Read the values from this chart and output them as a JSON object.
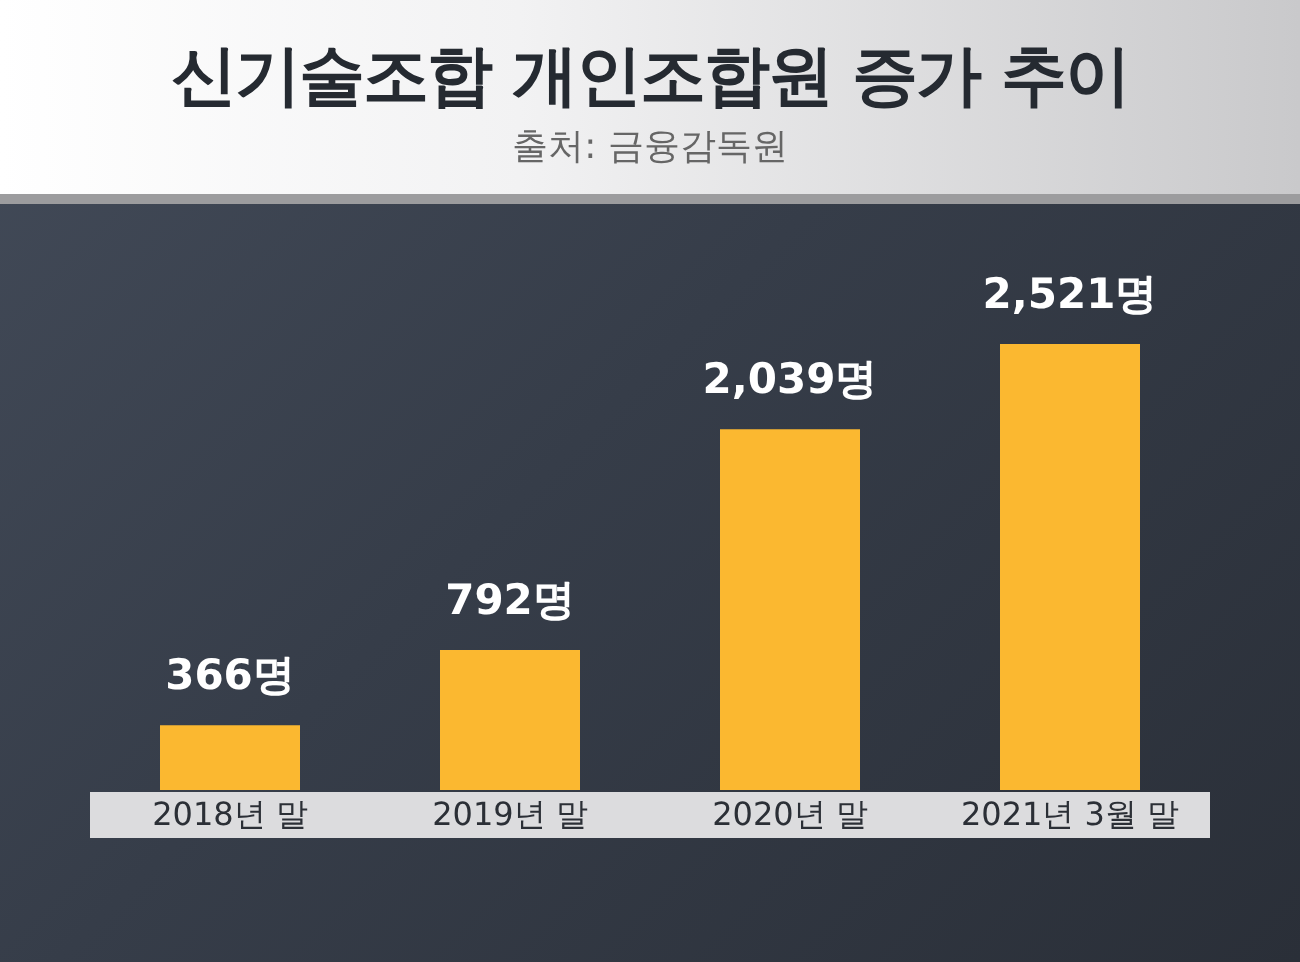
{
  "chart_data": {
    "type": "bar",
    "title": "신기술조합 개인조합원 증가 추이",
    "subtitle": "출처: 금융감독원",
    "categories": [
      "2018년 말",
      "2019년 말",
      "2020년 말",
      "2021년 3월 말"
    ],
    "values": [
      366,
      792,
      2039,
      2521
    ],
    "value_labels": [
      "366명",
      "792명",
      "2,039명",
      "2,521명"
    ],
    "color": "#fbb830"
  }
}
